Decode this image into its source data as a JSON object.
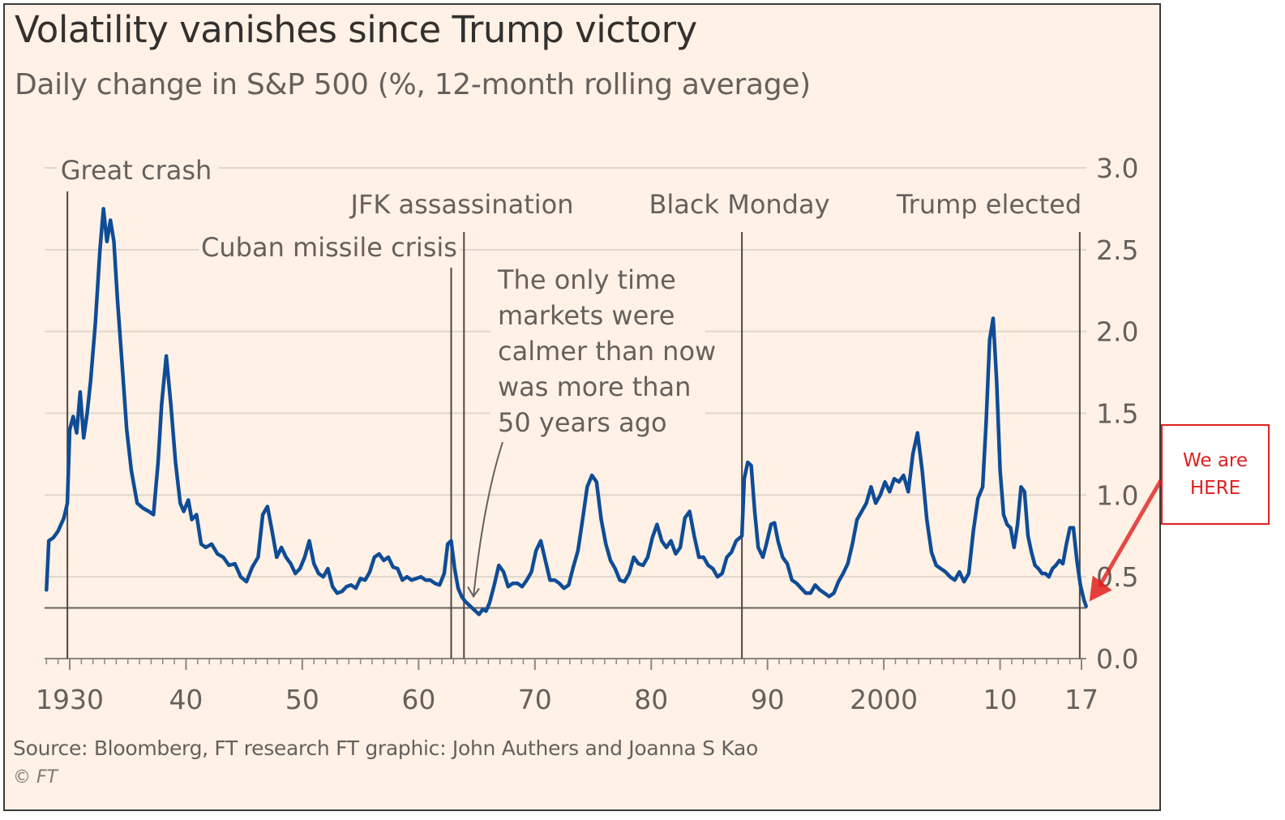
{
  "chart_data": {
    "type": "line",
    "title": "Volatility vanishes since Trump victory",
    "subtitle": "Daily change in S&P 500 (%, 12-month rolling average)",
    "ylim": [
      0,
      3.0
    ],
    "xlim": [
      1928,
      2017.3
    ],
    "y_ticks": [
      {
        "value": 3.0,
        "label": "3.0"
      },
      {
        "value": 2.5,
        "label": "2.5"
      },
      {
        "value": 2.0,
        "label": "2.0"
      },
      {
        "value": 1.5,
        "label": "1.5"
      },
      {
        "value": 1.0,
        "label": "1.0"
      },
      {
        "value": 0.5,
        "label": "0.5"
      },
      {
        "value": 0.0,
        "label": "0.0"
      }
    ],
    "x_ticks": [
      {
        "value": 1930,
        "label": "1930"
      },
      {
        "value": 1940,
        "label": "40"
      },
      {
        "value": 1950,
        "label": "50"
      },
      {
        "value": 1960,
        "label": "60"
      },
      {
        "value": 1970,
        "label": "70"
      },
      {
        "value": 1980,
        "label": "80"
      },
      {
        "value": 1990,
        "label": "90"
      },
      {
        "value": 2000,
        "label": "2000"
      },
      {
        "value": 2010,
        "label": "10"
      },
      {
        "value": 2017,
        "label": "17"
      }
    ],
    "grid": true,
    "reference_line": 0.31,
    "events": [
      {
        "year": 1929.8,
        "label": "Great crash"
      },
      {
        "year": 1962.8,
        "label": "Cuban missile crisis"
      },
      {
        "year": 1963.9,
        "label": "JFK assassination"
      },
      {
        "year": 1987.8,
        "label": "Black Monday"
      },
      {
        "year": 2016.85,
        "label": "Trump elected"
      }
    ],
    "annotation": {
      "lines": [
        "The only time",
        "markets were",
        "calmer than now",
        "was more than",
        "50 years ago"
      ],
      "target": [
        1965.0,
        0.33
      ]
    },
    "series": [
      {
        "color": "#0f4c96",
        "points": [
          [
            1928.0,
            0.42
          ],
          [
            1928.2,
            0.72
          ],
          [
            1928.6,
            0.74
          ],
          [
            1929.0,
            0.78
          ],
          [
            1929.5,
            0.86
          ],
          [
            1929.8,
            0.95
          ],
          [
            1930.0,
            1.4
          ],
          [
            1930.3,
            1.48
          ],
          [
            1930.6,
            1.38
          ],
          [
            1930.9,
            1.63
          ],
          [
            1931.2,
            1.35
          ],
          [
            1931.5,
            1.5
          ],
          [
            1931.8,
            1.7
          ],
          [
            1932.2,
            2.05
          ],
          [
            1932.6,
            2.5
          ],
          [
            1932.9,
            2.75
          ],
          [
            1933.2,
            2.55
          ],
          [
            1933.5,
            2.68
          ],
          [
            1933.8,
            2.55
          ],
          [
            1934.1,
            2.2
          ],
          [
            1934.5,
            1.8
          ],
          [
            1934.9,
            1.4
          ],
          [
            1935.3,
            1.15
          ],
          [
            1935.8,
            0.95
          ],
          [
            1936.3,
            0.92
          ],
          [
            1936.8,
            0.9
          ],
          [
            1937.2,
            0.88
          ],
          [
            1937.6,
            1.2
          ],
          [
            1937.9,
            1.55
          ],
          [
            1938.3,
            1.85
          ],
          [
            1938.7,
            1.55
          ],
          [
            1939.1,
            1.2
          ],
          [
            1939.5,
            0.95
          ],
          [
            1939.8,
            0.9
          ],
          [
            1940.2,
            0.97
          ],
          [
            1940.5,
            0.85
          ],
          [
            1940.9,
            0.88
          ],
          [
            1941.3,
            0.7
          ],
          [
            1941.7,
            0.68
          ],
          [
            1942.2,
            0.7
          ],
          [
            1942.7,
            0.64
          ],
          [
            1943.2,
            0.62
          ],
          [
            1943.7,
            0.57
          ],
          [
            1944.2,
            0.58
          ],
          [
            1944.7,
            0.5
          ],
          [
            1945.2,
            0.47
          ],
          [
            1945.7,
            0.56
          ],
          [
            1946.2,
            0.62
          ],
          [
            1946.6,
            0.88
          ],
          [
            1947.0,
            0.93
          ],
          [
            1947.4,
            0.78
          ],
          [
            1947.8,
            0.62
          ],
          [
            1948.2,
            0.68
          ],
          [
            1948.6,
            0.62
          ],
          [
            1949.0,
            0.58
          ],
          [
            1949.4,
            0.52
          ],
          [
            1949.8,
            0.55
          ],
          [
            1950.2,
            0.62
          ],
          [
            1950.6,
            0.72
          ],
          [
            1951.0,
            0.58
          ],
          [
            1951.4,
            0.52
          ],
          [
            1951.8,
            0.5
          ],
          [
            1952.2,
            0.55
          ],
          [
            1952.6,
            0.44
          ],
          [
            1953.0,
            0.4
          ],
          [
            1953.4,
            0.41
          ],
          [
            1953.8,
            0.44
          ],
          [
            1954.2,
            0.45
          ],
          [
            1954.6,
            0.43
          ],
          [
            1955.0,
            0.49
          ],
          [
            1955.4,
            0.48
          ],
          [
            1955.8,
            0.53
          ],
          [
            1956.2,
            0.62
          ],
          [
            1956.6,
            0.64
          ],
          [
            1957.0,
            0.6
          ],
          [
            1957.4,
            0.62
          ],
          [
            1957.8,
            0.56
          ],
          [
            1958.2,
            0.55
          ],
          [
            1958.6,
            0.48
          ],
          [
            1959.0,
            0.5
          ],
          [
            1959.4,
            0.48
          ],
          [
            1959.8,
            0.49
          ],
          [
            1960.2,
            0.5
          ],
          [
            1960.6,
            0.48
          ],
          [
            1961.0,
            0.48
          ],
          [
            1961.4,
            0.46
          ],
          [
            1961.8,
            0.45
          ],
          [
            1962.2,
            0.52
          ],
          [
            1962.5,
            0.7
          ],
          [
            1962.8,
            0.72
          ],
          [
            1963.1,
            0.55
          ],
          [
            1963.4,
            0.43
          ],
          [
            1963.7,
            0.38
          ],
          [
            1964.0,
            0.35
          ],
          [
            1964.3,
            0.33
          ],
          [
            1964.6,
            0.31
          ],
          [
            1964.9,
            0.29
          ],
          [
            1965.2,
            0.27
          ],
          [
            1965.5,
            0.3
          ],
          [
            1965.8,
            0.29
          ],
          [
            1966.1,
            0.34
          ],
          [
            1966.5,
            0.45
          ],
          [
            1966.9,
            0.57
          ],
          [
            1967.3,
            0.53
          ],
          [
            1967.7,
            0.44
          ],
          [
            1968.1,
            0.46
          ],
          [
            1968.5,
            0.46
          ],
          [
            1968.9,
            0.44
          ],
          [
            1969.3,
            0.48
          ],
          [
            1969.7,
            0.53
          ],
          [
            1970.1,
            0.66
          ],
          [
            1970.5,
            0.72
          ],
          [
            1970.9,
            0.6
          ],
          [
            1971.3,
            0.48
          ],
          [
            1971.7,
            0.48
          ],
          [
            1972.1,
            0.46
          ],
          [
            1972.5,
            0.43
          ],
          [
            1972.9,
            0.45
          ],
          [
            1973.3,
            0.56
          ],
          [
            1973.7,
            0.66
          ],
          [
            1974.1,
            0.85
          ],
          [
            1974.5,
            1.05
          ],
          [
            1974.9,
            1.12
          ],
          [
            1975.3,
            1.08
          ],
          [
            1975.7,
            0.85
          ],
          [
            1976.1,
            0.7
          ],
          [
            1976.5,
            0.6
          ],
          [
            1976.9,
            0.55
          ],
          [
            1977.3,
            0.48
          ],
          [
            1977.7,
            0.47
          ],
          [
            1978.1,
            0.52
          ],
          [
            1978.5,
            0.62
          ],
          [
            1978.9,
            0.58
          ],
          [
            1979.3,
            0.57
          ],
          [
            1979.7,
            0.62
          ],
          [
            1980.1,
            0.74
          ],
          [
            1980.5,
            0.82
          ],
          [
            1980.9,
            0.72
          ],
          [
            1981.3,
            0.68
          ],
          [
            1981.7,
            0.72
          ],
          [
            1982.1,
            0.64
          ],
          [
            1982.5,
            0.68
          ],
          [
            1982.9,
            0.86
          ],
          [
            1983.3,
            0.9
          ],
          [
            1983.7,
            0.75
          ],
          [
            1984.1,
            0.62
          ],
          [
            1984.5,
            0.62
          ],
          [
            1984.9,
            0.57
          ],
          [
            1985.3,
            0.55
          ],
          [
            1985.7,
            0.5
          ],
          [
            1986.1,
            0.52
          ],
          [
            1986.5,
            0.62
          ],
          [
            1986.9,
            0.65
          ],
          [
            1987.3,
            0.72
          ],
          [
            1987.8,
            0.75
          ],
          [
            1988.0,
            1.1
          ],
          [
            1988.3,
            1.2
          ],
          [
            1988.6,
            1.18
          ],
          [
            1988.9,
            0.9
          ],
          [
            1989.2,
            0.68
          ],
          [
            1989.6,
            0.62
          ],
          [
            1989.9,
            0.7
          ],
          [
            1990.3,
            0.82
          ],
          [
            1990.6,
            0.83
          ],
          [
            1990.9,
            0.72
          ],
          [
            1991.3,
            0.62
          ],
          [
            1991.7,
            0.58
          ],
          [
            1992.1,
            0.48
          ],
          [
            1992.5,
            0.46
          ],
          [
            1992.9,
            0.43
          ],
          [
            1993.3,
            0.4
          ],
          [
            1993.7,
            0.4
          ],
          [
            1994.1,
            0.45
          ],
          [
            1994.5,
            0.42
          ],
          [
            1994.9,
            0.4
          ],
          [
            1995.3,
            0.38
          ],
          [
            1995.7,
            0.4
          ],
          [
            1996.1,
            0.47
          ],
          [
            1996.5,
            0.52
          ],
          [
            1996.9,
            0.58
          ],
          [
            1997.3,
            0.7
          ],
          [
            1997.7,
            0.85
          ],
          [
            1998.1,
            0.9
          ],
          [
            1998.5,
            0.95
          ],
          [
            1998.9,
            1.05
          ],
          [
            1999.3,
            0.95
          ],
          [
            1999.7,
            1.0
          ],
          [
            2000.1,
            1.08
          ],
          [
            2000.5,
            1.02
          ],
          [
            2000.9,
            1.1
          ],
          [
            2001.3,
            1.08
          ],
          [
            2001.7,
            1.12
          ],
          [
            2002.1,
            1.02
          ],
          [
            2002.5,
            1.25
          ],
          [
            2002.9,
            1.38
          ],
          [
            2003.3,
            1.15
          ],
          [
            2003.7,
            0.85
          ],
          [
            2004.1,
            0.65
          ],
          [
            2004.5,
            0.57
          ],
          [
            2004.9,
            0.55
          ],
          [
            2005.3,
            0.53
          ],
          [
            2005.7,
            0.5
          ],
          [
            2006.1,
            0.48
          ],
          [
            2006.5,
            0.53
          ],
          [
            2006.9,
            0.47
          ],
          [
            2007.3,
            0.52
          ],
          [
            2007.7,
            0.78
          ],
          [
            2008.1,
            0.98
          ],
          [
            2008.5,
            1.05
          ],
          [
            2008.8,
            1.45
          ],
          [
            2009.1,
            1.95
          ],
          [
            2009.4,
            2.08
          ],
          [
            2009.7,
            1.7
          ],
          [
            2010.0,
            1.15
          ],
          [
            2010.3,
            0.88
          ],
          [
            2010.6,
            0.82
          ],
          [
            2010.9,
            0.8
          ],
          [
            2011.2,
            0.68
          ],
          [
            2011.5,
            0.82
          ],
          [
            2011.8,
            1.05
          ],
          [
            2012.1,
            1.02
          ],
          [
            2012.4,
            0.75
          ],
          [
            2012.7,
            0.65
          ],
          [
            2013.0,
            0.57
          ],
          [
            2013.3,
            0.55
          ],
          [
            2013.6,
            0.52
          ],
          [
            2013.9,
            0.52
          ],
          [
            2014.2,
            0.5
          ],
          [
            2014.5,
            0.55
          ],
          [
            2014.8,
            0.57
          ],
          [
            2015.1,
            0.6
          ],
          [
            2015.4,
            0.58
          ],
          [
            2015.7,
            0.7
          ],
          [
            2016.0,
            0.8
          ],
          [
            2016.3,
            0.8
          ],
          [
            2016.6,
            0.6
          ],
          [
            2016.9,
            0.45
          ],
          [
            2017.2,
            0.36
          ],
          [
            2017.4,
            0.32
          ]
        ]
      }
    ]
  },
  "source_text": "Source: Bloomberg, FT research   FT graphic: John Authers and Joanna S Kao",
  "copyright_text": "© FT",
  "callout": {
    "lines": [
      "We are",
      "HERE"
    ],
    "color": "#e02020"
  },
  "colors": {
    "background": "#fff1e5",
    "line": "#0f4c96",
    "grid": "#e0d6cc",
    "text": "#66605c"
  }
}
